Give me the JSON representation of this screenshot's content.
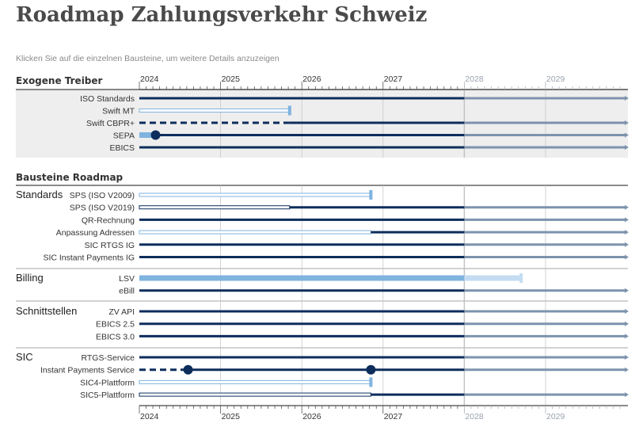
{
  "title": "Roadmap Zahlungsverkehr Schweiz",
  "subtitle": "Klicken Sie auf die einzelnen Bausteine, um weitere Details anzuzeigen",
  "colors": {
    "dark": "#0d2d5c",
    "light": "#7fb3e0",
    "pale": "#c4dcf2",
    "future": "#7d93ad",
    "panel": "#eeeeee",
    "grid": "#c8c8c8"
  },
  "chart_data": {
    "type": "timeline",
    "x_ticks": [
      "2024",
      "2025",
      "2026",
      "2027",
      "2028",
      "2029"
    ],
    "x_range": [
      2024,
      2030
    ],
    "today_marker": 2028,
    "sections": [
      {
        "title": "Exogene Treiber",
        "panel": true,
        "groups": [
          {
            "name": "",
            "rows": [
              {
                "label": "ISO Standards",
                "segments": [
                  {
                    "start": 2024,
                    "end": 2030,
                    "color": "dark",
                    "weight": 3
                  }
                ]
              },
              {
                "label": "Swift MT",
                "segments": [
                  {
                    "start": 2024,
                    "end": 2025.85,
                    "color": "light",
                    "weight": 1,
                    "outline": true,
                    "end_cap": true
                  }
                ]
              },
              {
                "label": "Swift CBPR+",
                "segments": [
                  {
                    "start": 2024,
                    "end": 2025.85,
                    "color": "dark",
                    "weight": 3,
                    "dashed": true
                  },
                  {
                    "start": 2025.85,
                    "end": 2030,
                    "color": "dark",
                    "weight": 3
                  }
                ]
              },
              {
                "label": "SEPA",
                "segments": [
                  {
                    "start": 2024,
                    "end": 2024.2,
                    "color": "light",
                    "weight": 7
                  },
                  {
                    "start": 2024.2,
                    "end": 2030,
                    "color": "dark",
                    "weight": 3
                  }
                ],
                "milestones": [
                  2024.2
                ]
              },
              {
                "label": "EBICS",
                "segments": [
                  {
                    "start": 2024,
                    "end": 2030,
                    "color": "dark",
                    "weight": 3
                  }
                ]
              }
            ]
          }
        ]
      },
      {
        "title": "Bausteine Roadmap",
        "panel": false,
        "groups": [
          {
            "name": "Standards",
            "rows": [
              {
                "label": "SPS (ISO V2009)",
                "segments": [
                  {
                    "start": 2024,
                    "end": 2026.85,
                    "color": "light",
                    "weight": 1,
                    "outline": true,
                    "end_cap": true
                  }
                ]
              },
              {
                "label": "SPS (ISO V2019)",
                "segments": [
                  {
                    "start": 2024,
                    "end": 2025.85,
                    "color": "dark",
                    "weight": 1,
                    "outline": true
                  },
                  {
                    "start": 2025.85,
                    "end": 2030,
                    "color": "dark",
                    "weight": 3
                  }
                ]
              },
              {
                "label": "QR-Rechnung",
                "segments": [
                  {
                    "start": 2024,
                    "end": 2030,
                    "color": "dark",
                    "weight": 3
                  }
                ]
              },
              {
                "label": "Anpassung Adressen",
                "segments": [
                  {
                    "start": 2024,
                    "end": 2026.85,
                    "color": "light",
                    "weight": 1,
                    "outline": true
                  },
                  {
                    "start": 2026.85,
                    "end": 2030,
                    "color": "dark",
                    "weight": 3
                  }
                ]
              },
              {
                "label": "SIC RTGS IG",
                "segments": [
                  {
                    "start": 2024,
                    "end": 2030,
                    "color": "dark",
                    "weight": 3
                  }
                ]
              },
              {
                "label": "SIC Instant Payments IG",
                "segments": [
                  {
                    "start": 2024,
                    "end": 2030,
                    "color": "dark",
                    "weight": 3
                  }
                ]
              }
            ]
          },
          {
            "name": "Billing",
            "rows": [
              {
                "label": "LSV",
                "segments": [
                  {
                    "start": 2024,
                    "end": 2028,
                    "color": "light",
                    "weight": 7
                  },
                  {
                    "start": 2028,
                    "end": 2028.7,
                    "color": "pale",
                    "weight": 7,
                    "end_cap": true
                  }
                ]
              },
              {
                "label": "eBill",
                "segments": [
                  {
                    "start": 2024,
                    "end": 2030,
                    "color": "dark",
                    "weight": 3
                  }
                ]
              }
            ]
          },
          {
            "name": "Schnittstellen",
            "rows": [
              {
                "label": "ZV API",
                "segments": [
                  {
                    "start": 2024,
                    "end": 2030,
                    "color": "dark",
                    "weight": 3
                  }
                ]
              },
              {
                "label": "EBICS 2.5",
                "segments": [
                  {
                    "start": 2024,
                    "end": 2030,
                    "color": "dark",
                    "weight": 3
                  }
                ]
              },
              {
                "label": "EBICS 3.0",
                "segments": [
                  {
                    "start": 2024,
                    "end": 2030,
                    "color": "dark",
                    "weight": 3
                  }
                ]
              }
            ]
          },
          {
            "name": "SIC",
            "rows": [
              {
                "label": "RTGS-Service",
                "segments": [
                  {
                    "start": 2024,
                    "end": 2030,
                    "color": "dark",
                    "weight": 3
                  }
                ]
              },
              {
                "label": "Instant Payments Service",
                "segments": [
                  {
                    "start": 2024,
                    "end": 2024.6,
                    "color": "dark",
                    "weight": 3,
                    "dashed": true
                  },
                  {
                    "start": 2024.6,
                    "end": 2030,
                    "color": "dark",
                    "weight": 3
                  }
                ],
                "milestones": [
                  2024.6,
                  2026.85
                ]
              },
              {
                "label": "SIC4-Plattform",
                "segments": [
                  {
                    "start": 2024,
                    "end": 2026.85,
                    "color": "light",
                    "weight": 1,
                    "outline": true,
                    "end_cap": true
                  }
                ]
              },
              {
                "label": "SIC5-Plattform",
                "segments": [
                  {
                    "start": 2024,
                    "end": 2026.85,
                    "color": "dark",
                    "weight": 1,
                    "outline": true
                  },
                  {
                    "start": 2026.85,
                    "end": 2028,
                    "color": "dark",
                    "weight": 3
                  },
                  {
                    "start": 2028,
                    "end": 2030,
                    "color": "future",
                    "weight": 3
                  }
                ]
              }
            ]
          }
        ]
      }
    ]
  }
}
